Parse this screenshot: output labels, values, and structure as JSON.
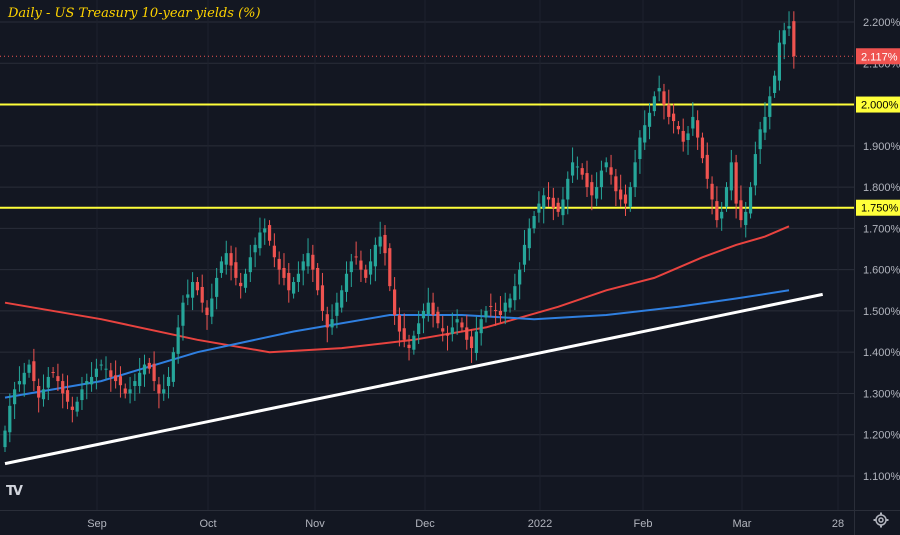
{
  "title": "Daily - US Treasury 10-year yields (%)",
  "logo_text": "TV",
  "colors": {
    "background": "#131722",
    "up": "#26a69a",
    "down": "#ef5350",
    "ma_red": "#e8433f",
    "ma_blue": "#2f7fe0",
    "trendline": "#ffffff",
    "level": "#ffff3a",
    "grid": "#2a2e39",
    "axis_text": "#b2b5be"
  },
  "chart_data": {
    "type": "candlestick",
    "title": "Daily - US Treasury 10-year yields (%)",
    "x_tick_labels": [
      "Sep",
      "Oct",
      "Nov",
      "Dec",
      "2022",
      "Feb",
      "Mar",
      "28"
    ],
    "y_tick_labels": [
      "2.200%",
      "2.100%",
      "2.000%",
      "1.900%",
      "1.800%",
      "1.700%",
      "1.600%",
      "1.500%",
      "1.400%",
      "1.300%",
      "1.200%",
      "1.100%"
    ],
    "y_ticks": [
      2.2,
      2.1,
      2.0,
      1.9,
      1.8,
      1.7,
      1.6,
      1.5,
      1.4,
      1.3,
      1.2,
      1.1
    ],
    "ylim": [
      1.06,
      2.245
    ],
    "horizontal_levels": [
      {
        "value": 2.0,
        "label": "2.000%"
      },
      {
        "value": 1.75,
        "label": "1.750%"
      }
    ],
    "last_price": {
      "value": 2.117,
      "label": "2.117%"
    },
    "closes": [
      1.21,
      1.27,
      1.31,
      1.33,
      1.35,
      1.37,
      1.33,
      1.29,
      1.31,
      1.34,
      1.35,
      1.33,
      1.3,
      1.28,
      1.26,
      1.28,
      1.31,
      1.33,
      1.34,
      1.36,
      1.37,
      1.36,
      1.34,
      1.33,
      1.32,
      1.3,
      1.31,
      1.33,
      1.35,
      1.37,
      1.36,
      1.33,
      1.3,
      1.31,
      1.34,
      1.4,
      1.46,
      1.52,
      1.54,
      1.57,
      1.55,
      1.52,
      1.49,
      1.53,
      1.58,
      1.62,
      1.64,
      1.61,
      1.58,
      1.56,
      1.59,
      1.63,
      1.66,
      1.69,
      1.7,
      1.67,
      1.63,
      1.6,
      1.58,
      1.55,
      1.57,
      1.59,
      1.62,
      1.64,
      1.6,
      1.55,
      1.5,
      1.46,
      1.48,
      1.52,
      1.55,
      1.59,
      1.62,
      1.63,
      1.6,
      1.58,
      1.62,
      1.66,
      1.68,
      1.64,
      1.56,
      1.49,
      1.45,
      1.43,
      1.41,
      1.44,
      1.47,
      1.5,
      1.52,
      1.49,
      1.47,
      1.45,
      1.44,
      1.46,
      1.48,
      1.46,
      1.43,
      1.41,
      1.45,
      1.48,
      1.5,
      1.51,
      1.5,
      1.49,
      1.52,
      1.53,
      1.56,
      1.6,
      1.66,
      1.7,
      1.73,
      1.76,
      1.78,
      1.77,
      1.75,
      1.74,
      1.77,
      1.82,
      1.86,
      1.85,
      1.83,
      1.8,
      1.78,
      1.8,
      1.84,
      1.86,
      1.83,
      1.79,
      1.77,
      1.76,
      1.8,
      1.86,
      1.92,
      1.95,
      1.98,
      2.02,
      2.04,
      2.0,
      1.97,
      1.96,
      1.94,
      1.91,
      1.93,
      1.97,
      1.92,
      1.87,
      1.82,
      1.77,
      1.72,
      1.74,
      1.8,
      1.86,
      1.76,
      1.72,
      1.74,
      1.8,
      1.88,
      1.94,
      1.97,
      2.02,
      2.07,
      2.15,
      2.18,
      2.19,
      2.117
    ],
    "ma_red_series": [
      {
        "i": 0,
        "v": 1.52
      },
      {
        "i": 20,
        "v": 1.48
      },
      {
        "i": 40,
        "v": 1.43
      },
      {
        "i": 55,
        "v": 1.4
      },
      {
        "i": 70,
        "v": 1.41
      },
      {
        "i": 85,
        "v": 1.43
      },
      {
        "i": 100,
        "v": 1.46
      },
      {
        "i": 115,
        "v": 1.51
      },
      {
        "i": 125,
        "v": 1.55
      },
      {
        "i": 135,
        "v": 1.58
      },
      {
        "i": 145,
        "v": 1.63
      },
      {
        "i": 152,
        "v": 1.66
      },
      {
        "i": 158,
        "v": 1.68
      },
      {
        "i": 163,
        "v": 1.705
      }
    ],
    "ma_blue_series": [
      {
        "i": 0,
        "v": 1.29
      },
      {
        "i": 20,
        "v": 1.33
      },
      {
        "i": 40,
        "v": 1.4
      },
      {
        "i": 60,
        "v": 1.45
      },
      {
        "i": 80,
        "v": 1.49
      },
      {
        "i": 95,
        "v": 1.49
      },
      {
        "i": 110,
        "v": 1.48
      },
      {
        "i": 125,
        "v": 1.49
      },
      {
        "i": 140,
        "v": 1.51
      },
      {
        "i": 152,
        "v": 1.53
      },
      {
        "i": 163,
        "v": 1.55
      }
    ],
    "trendline": [
      {
        "i": 0,
        "v": 1.13
      },
      {
        "i": 170,
        "v": 1.54
      }
    ]
  }
}
